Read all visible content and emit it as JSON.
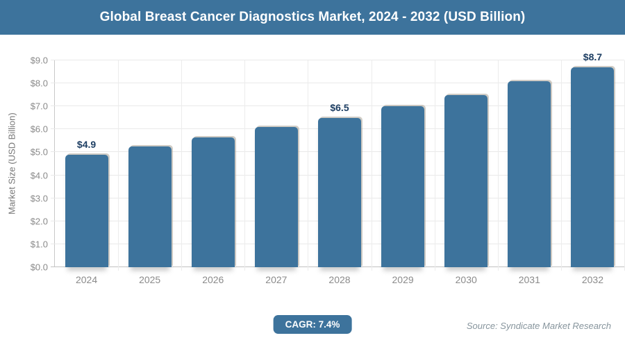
{
  "header": {
    "title": "Global Breast Cancer Diagnostics Market, 2024 - 2032 (USD Billion)"
  },
  "chart_data": {
    "type": "bar",
    "title": "Global Breast Cancer Diagnostics Market, 2024 - 2032 (USD Billion)",
    "categories": [
      "2024",
      "2025",
      "2026",
      "2027",
      "2028",
      "2029",
      "2030",
      "2031",
      "2032"
    ],
    "values": [
      4.9,
      5.25,
      5.65,
      6.1,
      6.5,
      7.0,
      7.5,
      8.1,
      8.7
    ],
    "bar_labels": [
      "$4.9",
      "",
      "",
      "",
      "$6.5",
      "",
      "",
      "",
      "$8.7"
    ],
    "xlabel": "",
    "ylabel": "Market Size (USD Billion)",
    "ylim": [
      0,
      9
    ],
    "y_tick_labels": [
      "$0.0",
      "$1.0",
      "$2.0",
      "$3.0",
      "$4.0",
      "$5.0",
      "$6.0",
      "$7.0",
      "$8.0",
      "$9.0"
    ],
    "grid": true,
    "legend": "none",
    "colors": {
      "accent": "#3d739c",
      "bar": "#3d739c",
      "value_label": "#1d3e63",
      "axis_text": "#8a8a8a",
      "gridline": "#e9e9e9"
    }
  },
  "footer": {
    "cagr_label": "CAGR: 7.4%",
    "source": "Source: Syndicate Market Research"
  }
}
